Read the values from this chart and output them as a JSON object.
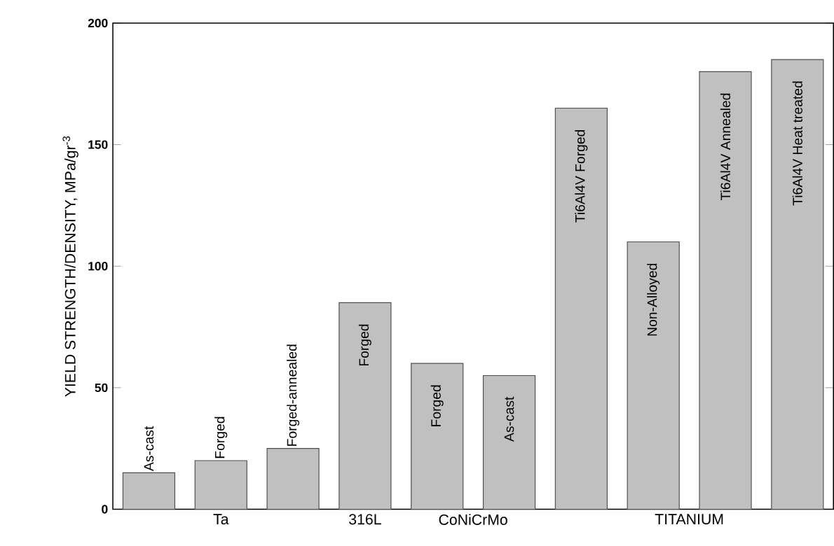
{
  "chart_data": {
    "type": "bar",
    "ylabel": "YIELD STRENGTH/DENSITY, MPa/gr$^{-3}$",
    "categories": [
      "As-cast",
      "Forged",
      "Forged-annealed",
      "Forged",
      "Forged",
      "As-cast",
      "Ti6Al4V Forged",
      "Non-Alloyed",
      "Ti6Al4V Annealed",
      "Ti6Al4V Heat treated"
    ],
    "values": [
      15,
      20,
      25,
      85,
      60,
      55,
      165,
      110,
      180,
      185
    ],
    "color": "#c0c0c0",
    "ylim": [
      0,
      200
    ],
    "yticks": [
      0,
      50,
      100,
      150,
      200
    ],
    "annotations": [
      "Ta",
      "316L",
      "CoNiCrMo",
      "TITANIUM"
    ]
  }
}
